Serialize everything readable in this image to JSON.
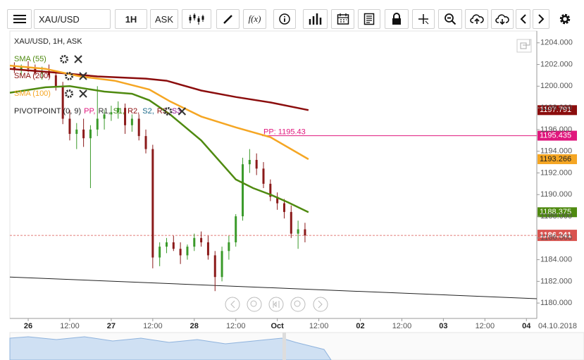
{
  "toolbar": {
    "symbol": "XAU/USD",
    "timeframe": "1H",
    "price_type": "ASK",
    "fx": "f(x)"
  },
  "chart_data": {
    "type": "candlestick",
    "legend_title": "XAU/USD, 1H, ASK",
    "xlim": [
      -5.3,
      147
    ],
    "ylim": [
      1178.58,
      1205.09
    ],
    "xticks": [
      {
        "value": 0,
        "label": "26"
      },
      {
        "value": 12,
        "label": "12:00"
      },
      {
        "value": 24,
        "label": "27"
      },
      {
        "value": 36,
        "label": "12:00"
      },
      {
        "value": 48,
        "label": "28"
      },
      {
        "value": 60,
        "label": "12:00"
      },
      {
        "value": 72,
        "label": "Oct"
      },
      {
        "value": 84,
        "label": "12:00"
      },
      {
        "value": 96,
        "label": "02"
      },
      {
        "value": 108,
        "label": "12:00"
      },
      {
        "value": 120,
        "label": "03"
      },
      {
        "value": 132,
        "label": "12:00"
      },
      {
        "value": 144,
        "label": "04"
      }
    ],
    "date_label": "04.10.2018",
    "yticks": [
      {
        "value": 1180,
        "label": "1180.000"
      },
      {
        "value": 1182,
        "label": "1182.000"
      },
      {
        "value": 1184,
        "label": "1184.000"
      },
      {
        "value": 1186,
        "label": "1186.000"
      },
      {
        "value": 1188,
        "label": "1188.000"
      },
      {
        "value": 1190,
        "label": "1190.000"
      },
      {
        "value": 1192,
        "label": "1192.000"
      },
      {
        "value": 1194,
        "label": "1194.000"
      },
      {
        "value": 1196,
        "label": "1196.000"
      },
      {
        "value": 1198,
        "label": "1198.000"
      },
      {
        "value": 1200,
        "label": "1200.000"
      },
      {
        "value": 1202,
        "label": "1202.000"
      },
      {
        "value": 1204,
        "label": "1204.000"
      }
    ],
    "candles": {
      "up_color": "#3a9a2a",
      "down_color": "#8b1a1a",
      "x": [
        -4,
        -2,
        0,
        2,
        4,
        6,
        8,
        10,
        12,
        14,
        16,
        18,
        20,
        22,
        24,
        26,
        28,
        30,
        32,
        34,
        36,
        38,
        40,
        42,
        44,
        46,
        48,
        50,
        52,
        54,
        56,
        58,
        60,
        62,
        64,
        66,
        68,
        70,
        72,
        74,
        76,
        78,
        80
      ],
      "open": [
        1201.8,
        1201.5,
        1201.8,
        1201.6,
        1201.2,
        1201.4,
        1201,
        1200,
        1197,
        1195.6,
        1196,
        1195.2,
        1196,
        1197,
        1197.4,
        1197.6,
        1198,
        1196.4,
        1197,
        1195.4,
        1194.2,
        1184.2,
        1185.2,
        1185.6,
        1185,
        1184.4,
        1185.2,
        1186,
        1185.6,
        1184.4,
        1182.4,
        1184.8,
        1185.6,
        1188,
        1192.8,
        1193.2,
        1192.4,
        1191,
        1189.8,
        1189.2,
        1188.4,
        1186.4,
        1186.8
      ],
      "high": [
        1202.2,
        1202,
        1202.3,
        1202,
        1201.8,
        1202,
        1201.4,
        1200.4,
        1197.8,
        1196.6,
        1197,
        1196.4,
        1200,
        1197.8,
        1198.2,
        1198.6,
        1198.4,
        1197.4,
        1197.4,
        1196,
        1194.6,
        1185.6,
        1186,
        1186.2,
        1185.6,
        1185.4,
        1186.4,
        1186.6,
        1186.2,
        1184.8,
        1185.2,
        1186.2,
        1188.2,
        1193.4,
        1194.2,
        1193.8,
        1193,
        1191.4,
        1190.2,
        1189.6,
        1189,
        1187.6,
        1187.4
      ],
      "low": [
        1201.2,
        1201,
        1201.3,
        1201,
        1200.6,
        1200.8,
        1199.6,
        1196.5,
        1195,
        1194.2,
        1194.4,
        1190.6,
        1195.4,
        1196,
        1196.8,
        1197,
        1195.6,
        1195.8,
        1195,
        1193.8,
        1183.2,
        1183.4,
        1184.6,
        1184.8,
        1183.6,
        1184,
        1184.8,
        1185.2,
        1184,
        1181.1,
        1182,
        1184,
        1185.2,
        1187.6,
        1192,
        1191.8,
        1190.6,
        1189.4,
        1188.6,
        1187.8,
        1186,
        1185,
        1185.6
      ],
      "close": [
        1201.5,
        1201.8,
        1201.6,
        1201.2,
        1201.4,
        1201,
        1200,
        1197,
        1195.6,
        1196,
        1195.2,
        1196,
        1197,
        1197.4,
        1197.6,
        1198,
        1196.4,
        1197,
        1195.4,
        1194.2,
        1184.2,
        1185.2,
        1185.6,
        1185,
        1184.4,
        1185.2,
        1186,
        1185.6,
        1184.4,
        1182.4,
        1184.8,
        1185.6,
        1188,
        1192.8,
        1193.2,
        1192.4,
        1191,
        1189.8,
        1189.2,
        1188.4,
        1186.4,
        1186.8,
        1186.241
      ]
    },
    "indicators": [
      {
        "name": "SMA (55)",
        "color": "#4f8a10",
        "x": [
          -5.3,
          5,
          12,
          22,
          30,
          35,
          41,
          50,
          60,
          65,
          70,
          75,
          81
        ],
        "values": [
          1199.4,
          1199.9,
          1200,
          1199.5,
          1199.3,
          1198.7,
          1197.4,
          1195,
          1191.4,
          1190.6,
          1190,
          1189.3,
          1188.375
        ],
        "last_label": "1188.375"
      },
      {
        "name": "SMA (200)",
        "color": "#8b0d0d",
        "x": [
          -5.3,
          10,
          20,
          34,
          40,
          50,
          60,
          70,
          81
        ],
        "values": [
          1201.6,
          1201.2,
          1200.9,
          1200.7,
          1200.5,
          1199.6,
          1199,
          1198.5,
          1197.791
        ],
        "last_label": "1197.791"
      },
      {
        "name": "SMA (100)",
        "color": "#f5a623",
        "x": [
          -5.3,
          5,
          15,
          25,
          35,
          41,
          50,
          60,
          70,
          81
        ],
        "values": [
          1201.9,
          1201.6,
          1200.9,
          1200.5,
          1199.7,
          1198.6,
          1197.2,
          1196.2,
          1195.3,
          1193.266
        ],
        "last_label": "1193.266"
      }
    ],
    "pivot_legend": {
      "name": "PIVOTPOINT (0, 9)",
      "levels": [
        {
          "text": "PP,",
          "color": "#e0177d"
        },
        {
          "text": "R1,",
          "color": "#333333"
        },
        {
          "text": "S1,",
          "color": "#3a8a10"
        },
        {
          "text": "R2,",
          "color": "#8b0d0d"
        },
        {
          "text": "S2,",
          "color": "#1a6a8a"
        },
        {
          "text": "R3,",
          "color": "#8b0d0d"
        },
        {
          "text": "S3",
          "color": "#8b0d8b"
        }
      ]
    },
    "pivot": {
      "text": "PP: 1195.43",
      "value": 1195.435,
      "value_label": "1195.435",
      "color": "#e0177d"
    },
    "current_price": {
      "value": 1186.241,
      "label": "1186.241",
      "color": "#d9534f"
    },
    "trendline": {
      "x": [
        -5.3,
        147
      ],
      "values": [
        1182.4,
        1180.4
      ]
    }
  }
}
